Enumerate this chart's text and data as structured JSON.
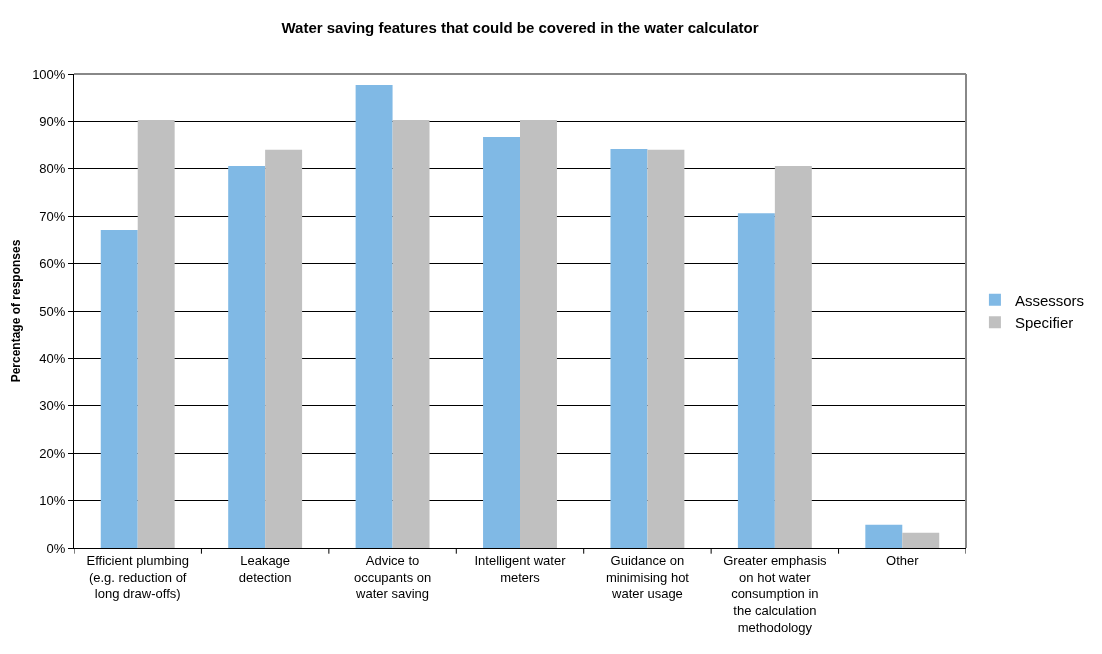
{
  "chart_data": {
    "type": "bar",
    "title": "Water saving features that could be covered in the water calculator",
    "ylabel": "Percentage of responses",
    "categories": [
      "Efficient plumbing (e.g. reduction of long draw-offs)",
      "Leakage detection",
      "Advice to occupants on water saving",
      "Intelligent water meters",
      "Guidance on minimising hot water usage",
      "Greater emphasis on hot water consumption in the calculation methodology",
      "Other"
    ],
    "series": [
      {
        "name": "Assessors",
        "color": "#80b9e5",
        "values": [
          67.1,
          80.6,
          97.7,
          86.7,
          84.2,
          70.6,
          4.9
        ]
      },
      {
        "name": "Specifier",
        "color": "#c0c0c0",
        "values": [
          90.3,
          84.0,
          90.3,
          90.3,
          84.0,
          80.6,
          3.2
        ]
      }
    ],
    "ylim": [
      0,
      100
    ],
    "yticks": [
      {
        "value": 0,
        "label": "0%"
      },
      {
        "value": 10,
        "label": "10%"
      },
      {
        "value": 20,
        "label": "20%"
      },
      {
        "value": 30,
        "label": "30%"
      },
      {
        "value": 40,
        "label": "40%"
      },
      {
        "value": 50,
        "label": "50%"
      },
      {
        "value": 60,
        "label": "60%"
      },
      {
        "value": 70,
        "label": "70%"
      },
      {
        "value": 80,
        "label": "80%"
      },
      {
        "value": 90,
        "label": "90%"
      },
      {
        "value": 100,
        "label": "100%"
      }
    ],
    "grid": "y",
    "legend": "right"
  }
}
